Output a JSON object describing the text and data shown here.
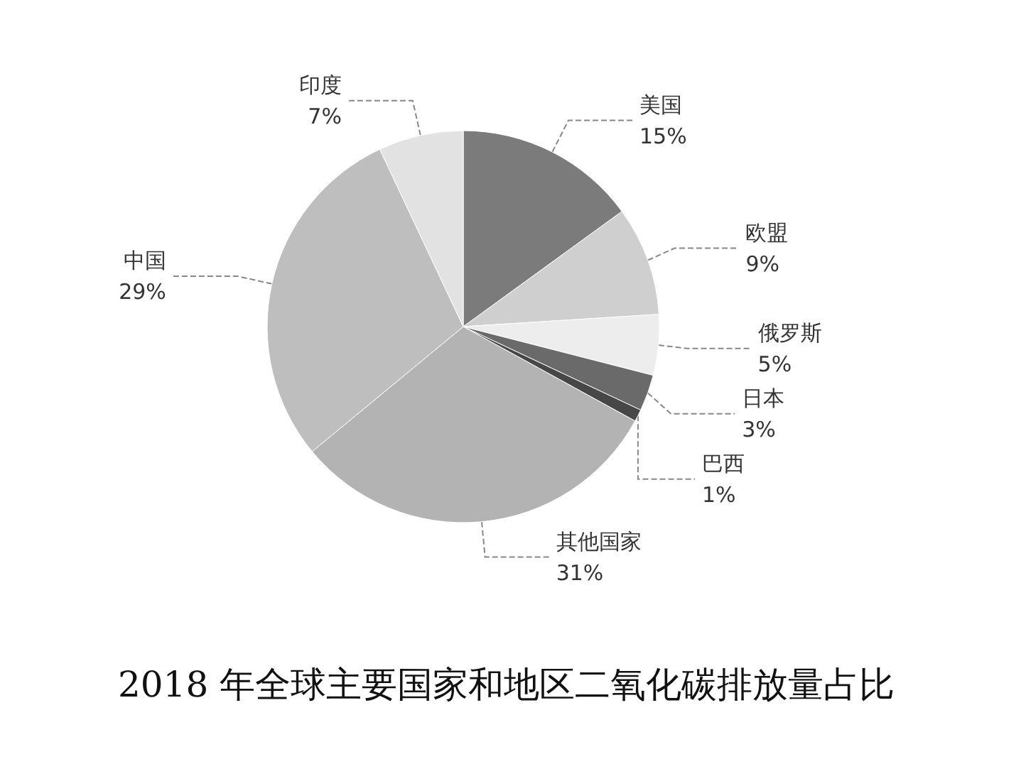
{
  "chart_data": {
    "type": "pie",
    "title": "2018 年全球主要国家和地区二氧化碳排放量占比",
    "categories": [
      "美国",
      "欧盟",
      "俄罗斯",
      "日本",
      "巴西",
      "其他国家",
      "中国",
      "印度"
    ],
    "values": [
      15,
      9,
      5,
      3,
      1,
      31,
      29,
      7
    ],
    "value_labels": [
      "15%",
      "9%",
      "5%",
      "3%",
      "1%",
      "31%",
      "29%",
      "7%"
    ],
    "colors": [
      "#7b7b7b",
      "#cfcfcf",
      "#ededed",
      "#6a6a6a",
      "#474747",
      "#b3b3b3",
      "#bebebe",
      "#e2e2e2"
    ],
    "legend": false
  }
}
